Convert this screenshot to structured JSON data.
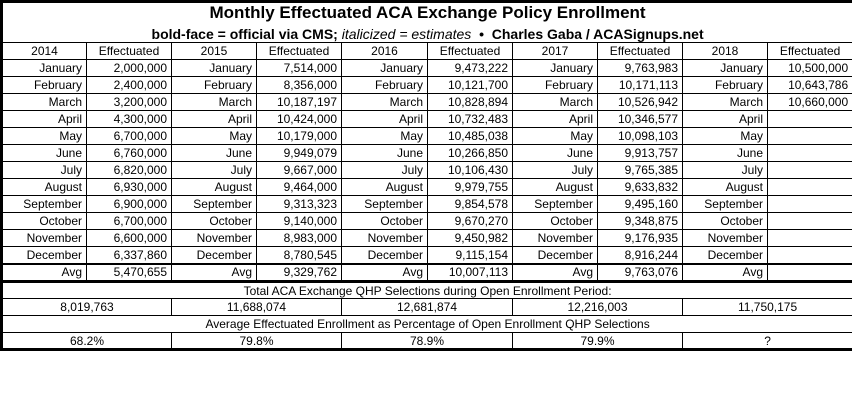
{
  "title": "Monthly Effectuated ACA Exchange Policy Enrollment",
  "subtitle": {
    "bold_prefix": "bold-face = official via CMS;",
    "italic_part": "italicized = estimates",
    "separator": "•",
    "credit": "Charles Gaba / ACASignups.net"
  },
  "table": {
    "effectuated_header": "Effectuated",
    "avg_label": "Avg",
    "months": [
      "January",
      "February",
      "March",
      "April",
      "May",
      "June",
      "July",
      "August",
      "September",
      "October",
      "November",
      "December"
    ],
    "years": [
      {
        "year": "2014",
        "values": [
          {
            "v": "2,000,000",
            "style": "estimate"
          },
          {
            "v": "2,400,000",
            "style": "estimate"
          },
          {
            "v": "3,200,000",
            "style": "estimate"
          },
          {
            "v": "4,300,000",
            "style": "estimate"
          },
          {
            "v": "6,700,000",
            "style": "estimate"
          },
          {
            "v": "6,760,000",
            "style": "estimate"
          },
          {
            "v": "6,820,000",
            "style": "estimate"
          },
          {
            "v": "6,930,000",
            "style": "official"
          },
          {
            "v": "6,900,000",
            "style": "estimate"
          },
          {
            "v": "6,700,000",
            "style": "official"
          },
          {
            "v": "6,600,000",
            "style": "estimate"
          },
          {
            "v": "6,337,860",
            "style": "official"
          }
        ],
        "avg": {
          "v": "5,470,655",
          "style": "official"
        }
      },
      {
        "year": "2015",
        "values": [
          {
            "v": "7,514,000",
            "style": "estimate"
          },
          {
            "v": "8,356,000",
            "style": "estimate"
          },
          {
            "v": "10,187,197",
            "style": "official"
          },
          {
            "v": "10,424,000",
            "style": "estimate"
          },
          {
            "v": "10,179,000",
            "style": "estimate"
          },
          {
            "v": "9,949,079",
            "style": "official"
          },
          {
            "v": "9,667,000",
            "style": "estimate"
          },
          {
            "v": "9,464,000",
            "style": "estimate"
          },
          {
            "v": "9,313,323",
            "style": "official"
          },
          {
            "v": "9,140,000",
            "style": "estimate"
          },
          {
            "v": "8,983,000",
            "style": "estimate"
          },
          {
            "v": "8,780,545",
            "style": "official"
          }
        ],
        "avg": {
          "v": "9,329,762",
          "style": "official"
        }
      },
      {
        "year": "2016",
        "values": [
          {
            "v": "9,473,222",
            "style": "official"
          },
          {
            "v": "10,121,700",
            "style": "official"
          },
          {
            "v": "10,828,894",
            "style": "official"
          },
          {
            "v": "10,732,483",
            "style": "official"
          },
          {
            "v": "10,485,038",
            "style": "official"
          },
          {
            "v": "10,266,850",
            "style": "official"
          },
          {
            "v": "10,106,430",
            "style": "official"
          },
          {
            "v": "9,979,755",
            "style": "official"
          },
          {
            "v": "9,854,578",
            "style": "official"
          },
          {
            "v": "9,670,270",
            "style": "official"
          },
          {
            "v": "9,450,982",
            "style": "official"
          },
          {
            "v": "9,115,154",
            "style": "official"
          }
        ],
        "avg": {
          "v": "10,007,113",
          "style": "official"
        }
      },
      {
        "year": "2017",
        "values": [
          {
            "v": "9,763,983",
            "style": "official"
          },
          {
            "v": "10,171,113",
            "style": "official"
          },
          {
            "v": "10,526,942",
            "style": "official"
          },
          {
            "v": "10,346,577",
            "style": "official"
          },
          {
            "v": "10,098,103",
            "style": "official"
          },
          {
            "v": "9,913,757",
            "style": "official"
          },
          {
            "v": "9,765,385",
            "style": "official"
          },
          {
            "v": "9,633,832",
            "style": "official"
          },
          {
            "v": "9,495,160",
            "style": "official"
          },
          {
            "v": "9,348,875",
            "style": "official"
          },
          {
            "v": "9,176,935",
            "style": "official"
          },
          {
            "v": "8,916,244",
            "style": "official"
          }
        ],
        "avg": {
          "v": "9,763,076",
          "style": "official"
        }
      },
      {
        "year": "2018",
        "values": [
          {
            "v": "10,500,000",
            "style": "estimate"
          },
          {
            "v": "10,643,786",
            "style": "official"
          },
          {
            "v": "10,660,000",
            "style": "estimate"
          },
          {
            "v": "",
            "style": ""
          },
          {
            "v": "",
            "style": ""
          },
          {
            "v": "",
            "style": ""
          },
          {
            "v": "",
            "style": ""
          },
          {
            "v": "",
            "style": ""
          },
          {
            "v": "",
            "style": ""
          },
          {
            "v": "",
            "style": ""
          },
          {
            "v": "",
            "style": ""
          },
          {
            "v": "",
            "style": ""
          }
        ],
        "avg": {
          "v": "",
          "style": ""
        }
      }
    ],
    "qhp_label": "Total ACA Exchange QHP Selections during Open Enrollment Period:",
    "qhp_totals": [
      "8,019,763",
      "11,688,074",
      "12,681,874",
      "12,216,003",
      "11,750,175"
    ],
    "pct_label": "Average Effectuated Enrollment as Percentage of Open Enrollment QHP Selections",
    "percentages": [
      {
        "v": "68.2%",
        "style": "official"
      },
      {
        "v": "79.8%",
        "style": "official"
      },
      {
        "v": "78.9%",
        "style": "official"
      },
      {
        "v": "79.9%",
        "style": "official"
      },
      {
        "v": "?",
        "style": "estimate"
      }
    ]
  },
  "chart_data": {
    "type": "table",
    "title": "Monthly Effectuated ACA Exchange Policy Enrollment",
    "note": "bold-face = official via CMS; italicized = estimates • Charles Gaba / ACASignups.net",
    "categories": [
      "January",
      "February",
      "March",
      "April",
      "May",
      "June",
      "July",
      "August",
      "September",
      "October",
      "November",
      "December"
    ],
    "series": [
      {
        "name": "2014",
        "values": [
          2000000,
          2400000,
          3200000,
          4300000,
          6700000,
          6760000,
          6820000,
          6930000,
          6900000,
          6700000,
          6600000,
          6337860
        ],
        "avg": 5470655
      },
      {
        "name": "2015",
        "values": [
          7514000,
          8356000,
          10187197,
          10424000,
          10179000,
          9949079,
          9667000,
          9464000,
          9313323,
          9140000,
          8983000,
          8780545
        ],
        "avg": 9329762
      },
      {
        "name": "2016",
        "values": [
          9473222,
          10121700,
          10828894,
          10732483,
          10485038,
          10266850,
          10106430,
          9979755,
          9854578,
          9670270,
          9450982,
          9115154
        ],
        "avg": 10007113
      },
      {
        "name": "2017",
        "values": [
          9763983,
          10171113,
          10526942,
          10346577,
          10098103,
          9913757,
          9765385,
          9633832,
          9495160,
          9348875,
          9176935,
          8916244
        ],
        "avg": 9763076
      },
      {
        "name": "2018",
        "values": [
          10500000,
          10643786,
          10660000,
          null,
          null,
          null,
          null,
          null,
          null,
          null,
          null,
          null
        ],
        "avg": null
      }
    ],
    "qhp_selections_by_year": {
      "2014": 8019763,
      "2015": 11688074,
      "2016": 12681874,
      "2017": 12216003,
      "2018": 11750175
    },
    "effectuated_pct_of_qhp_by_year": {
      "2014": 68.2,
      "2015": 79.8,
      "2016": 78.9,
      "2017": 79.9,
      "2018": null
    }
  }
}
